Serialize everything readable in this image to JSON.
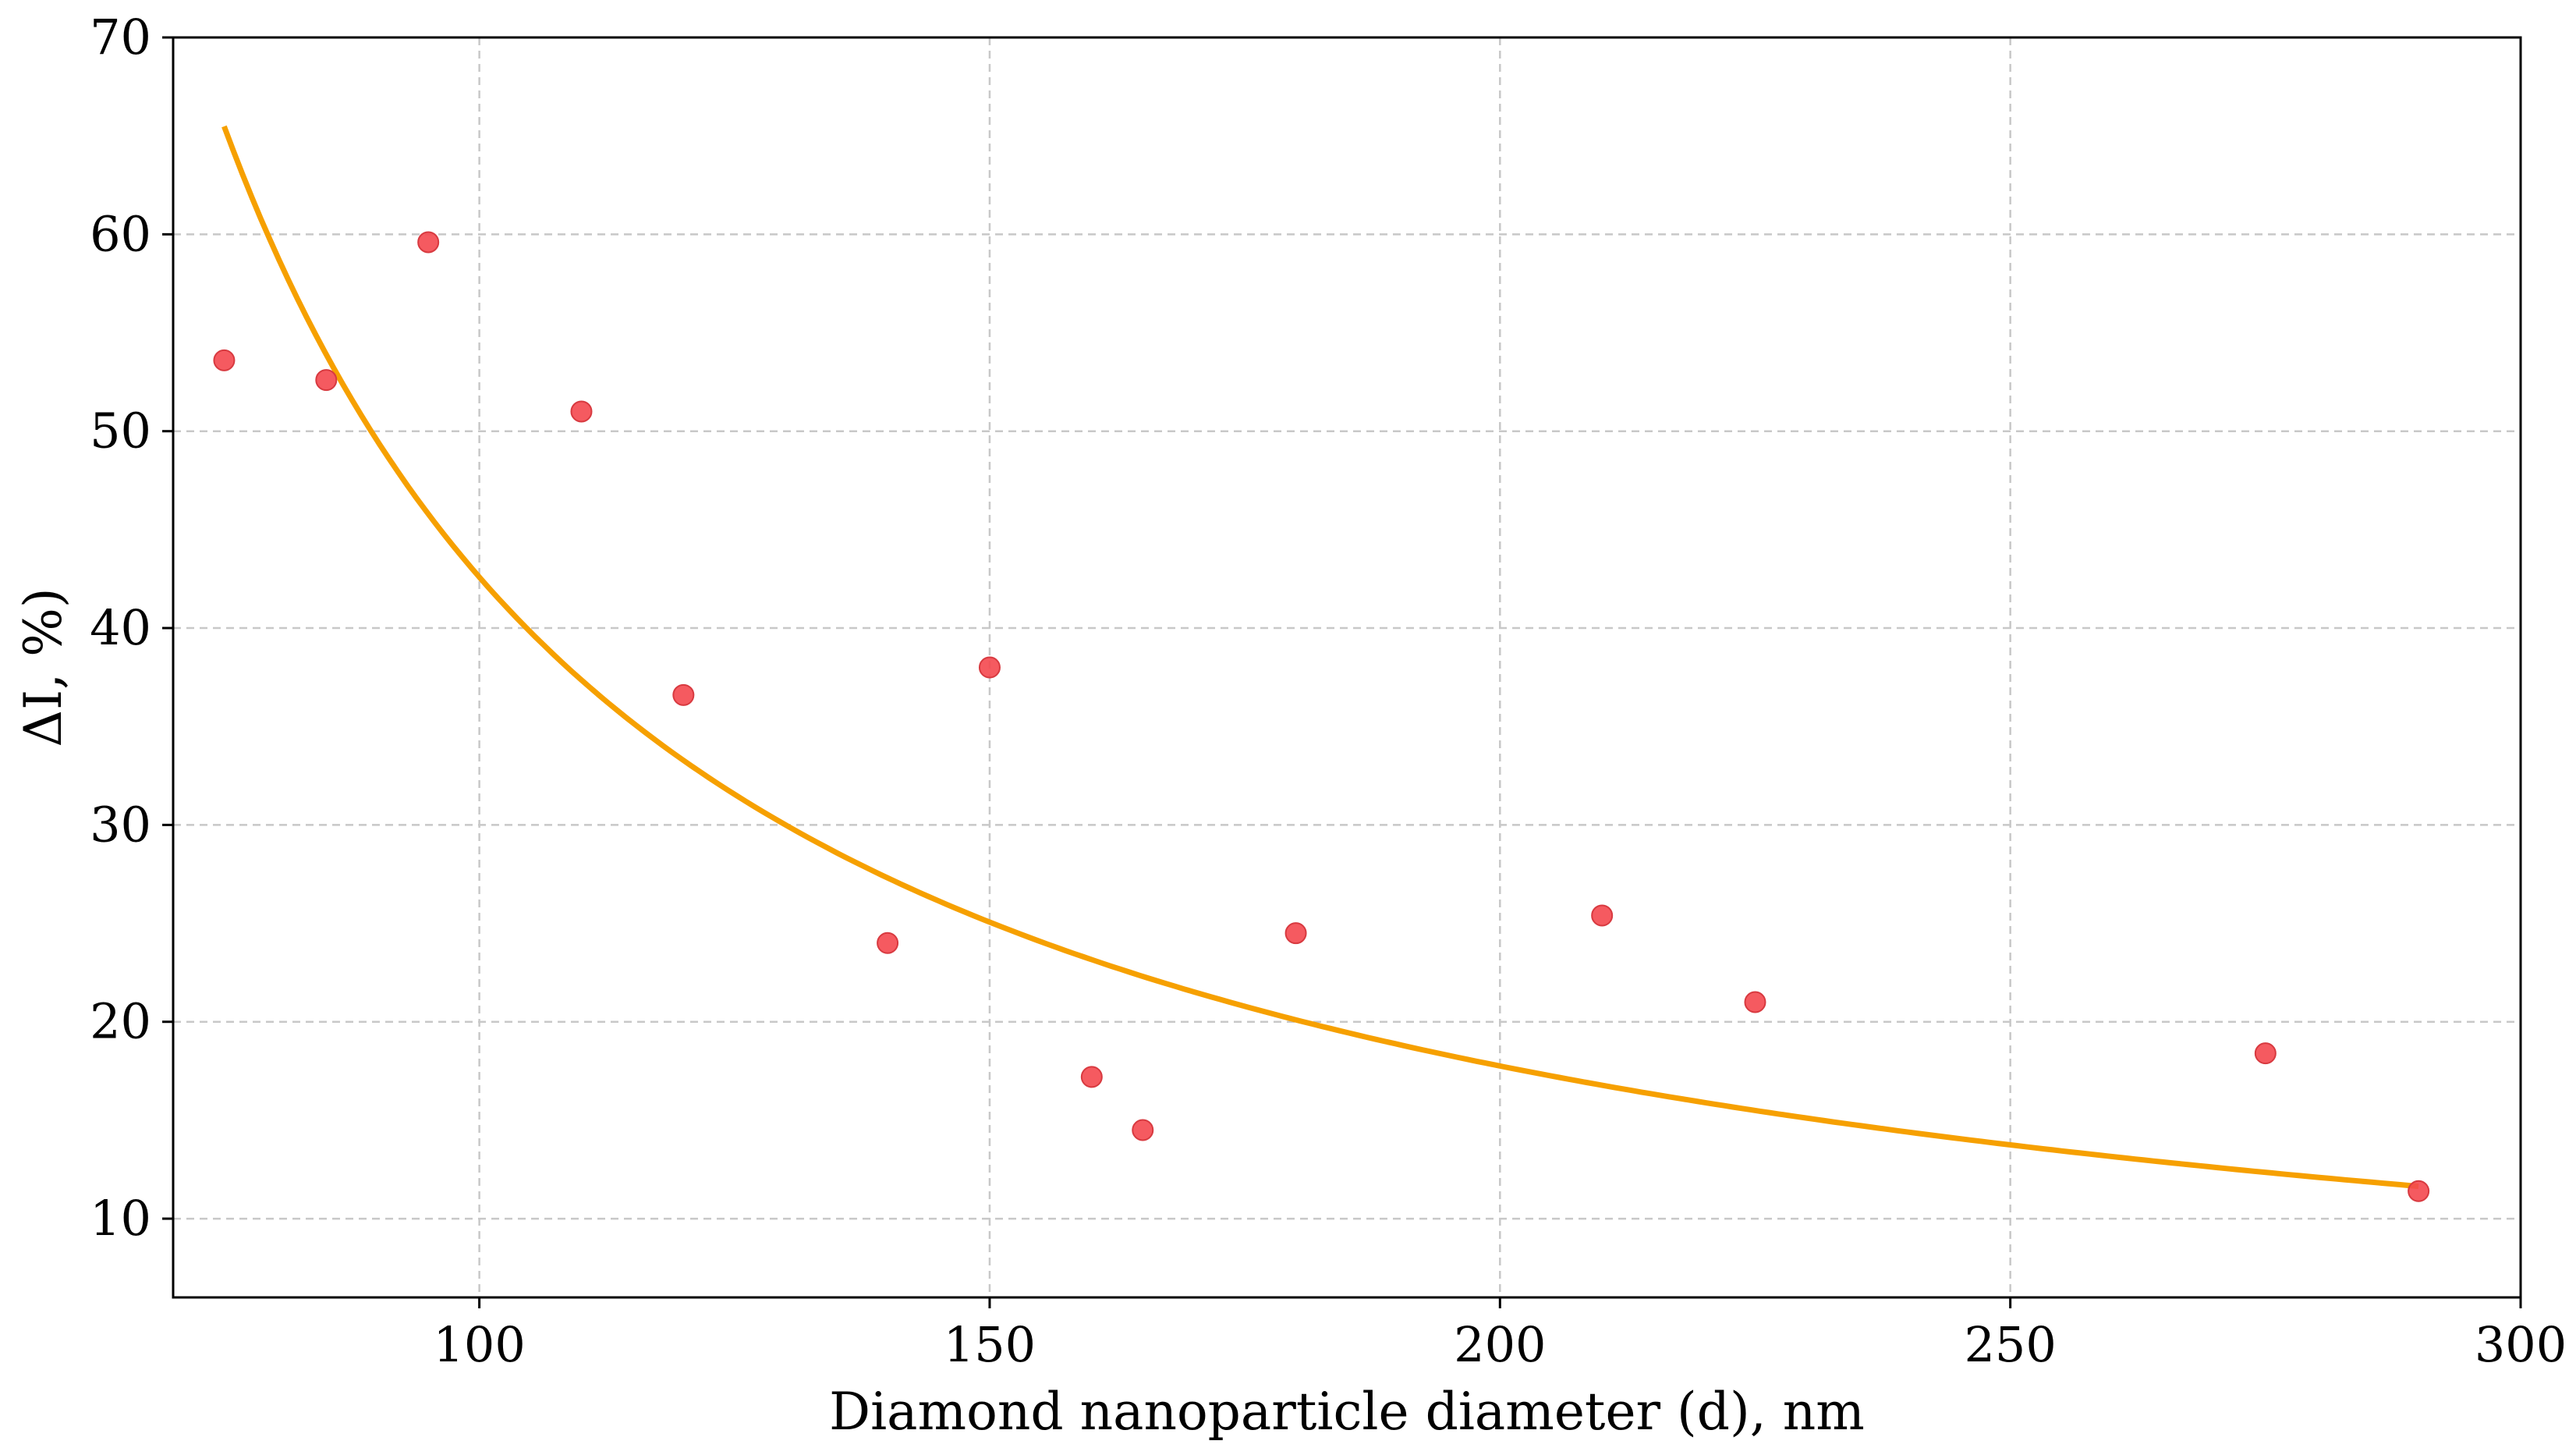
{
  "chart_data": {
    "type": "scatter",
    "title": "",
    "xlabel": "Diamond nanoparticle diameter (d), nm",
    "ylabel": "ΔI, %)",
    "xlim": [
      70,
      300
    ],
    "ylim": [
      6,
      70
    ],
    "xticks": [
      100,
      150,
      200,
      250,
      300
    ],
    "yticks": [
      10,
      20,
      30,
      40,
      50,
      60,
      70
    ],
    "grid": true,
    "legend": "none",
    "points": [
      {
        "x": 75,
        "y": 53.6
      },
      {
        "x": 85,
        "y": 52.6
      },
      {
        "x": 95,
        "y": 59.6
      },
      {
        "x": 110,
        "y": 51.0
      },
      {
        "x": 120,
        "y": 36.6
      },
      {
        "x": 140,
        "y": 24.0
      },
      {
        "x": 150,
        "y": 38.0
      },
      {
        "x": 160,
        "y": 17.2
      },
      {
        "x": 165,
        "y": 14.5
      },
      {
        "x": 180,
        "y": 24.5
      },
      {
        "x": 210,
        "y": 25.4
      },
      {
        "x": 225,
        "y": 21.0
      },
      {
        "x": 275,
        "y": 18.4
      },
      {
        "x": 290,
        "y": 11.4
      }
    ],
    "fit_curve": {
      "form": "y = a / (x - c)",
      "a": 3045,
      "c": 28.5,
      "x_range": [
        75,
        290
      ]
    },
    "colors": {
      "points": "#f4484f",
      "curve": "#f6a000",
      "grid": "#c8c8c8",
      "axes": "#000000"
    }
  }
}
